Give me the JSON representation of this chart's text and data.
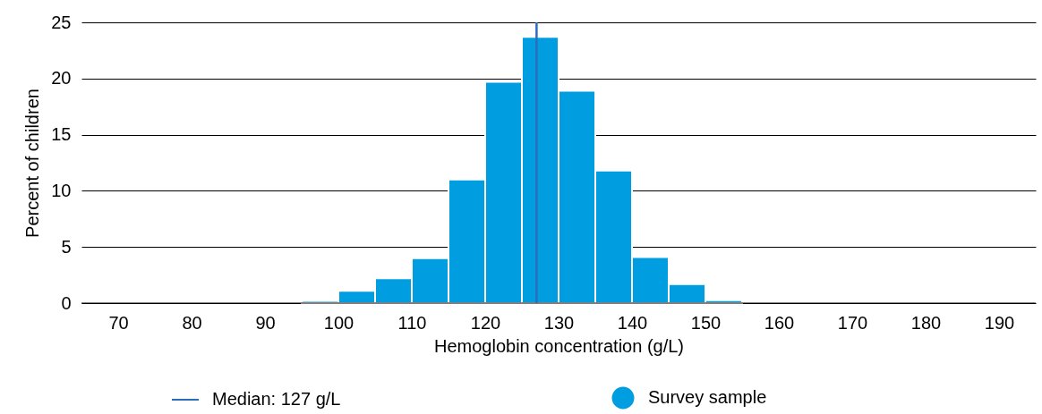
{
  "chart_data": {
    "type": "histogram",
    "xlabel": "Hemoglobin concentration (g/L)",
    "ylabel": "Percent of children",
    "bins": [
      95,
      100,
      105,
      110,
      115,
      120,
      125,
      130,
      135,
      140,
      145,
      150,
      155
    ],
    "series": [
      {
        "name": "Survey sample",
        "color": "#009ee0",
        "values": [
          0.2,
          1.1,
          2.2,
          4.0,
          11.0,
          19.7,
          23.7,
          18.9,
          11.8,
          4.1,
          1.7,
          0.25
        ]
      }
    ],
    "xlim": [
      65,
      195
    ],
    "xticks": [
      70,
      80,
      90,
      100,
      110,
      120,
      130,
      140,
      150,
      160,
      170,
      180,
      190
    ],
    "ylim": [
      0,
      25
    ],
    "yticks": [
      0,
      5,
      10,
      15,
      20,
      25
    ],
    "ref_lines": [
      {
        "axis": "x",
        "value": 127,
        "label": "Median: 127 g/L",
        "color": "#2a6ebb",
        "line_style": "solid"
      }
    ],
    "grid": "y",
    "legend": "bottom"
  }
}
